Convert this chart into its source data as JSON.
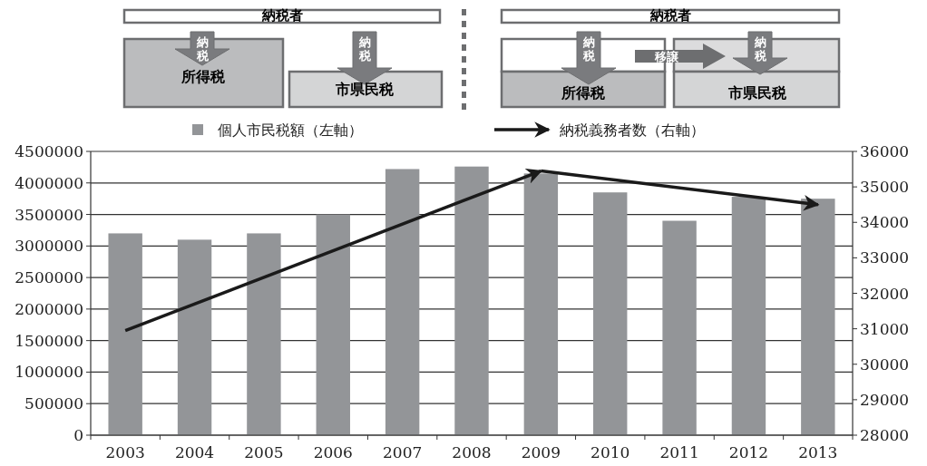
{
  "chart_data": {
    "type": "bar",
    "categories": [
      "2003",
      "2004",
      "2005",
      "2006",
      "2007",
      "2008",
      "2009",
      "2010",
      "2011",
      "2012",
      "2013"
    ],
    "series": [
      {
        "name": "個人市民税額（左軸）",
        "color": "#939598",
        "values": [
          3200000,
          3100000,
          3200000,
          3500000,
          4220000,
          4260000,
          4150000,
          3850000,
          3400000,
          3780000,
          3750000
        ]
      },
      {
        "name": "納税義務者数（右軸）",
        "type": "line",
        "axis": "y2",
        "color": "#1a1a1a",
        "values": [
          30950,
          null,
          null,
          null,
          null,
          null,
          35450,
          null,
          null,
          null,
          34500
        ]
      }
    ],
    "ylim": [
      0,
      4500000
    ],
    "yticks": [
      0,
      500000,
      1000000,
      1500000,
      2000000,
      2500000,
      3000000,
      3500000,
      4000000,
      4500000
    ],
    "y2lim": [
      28000,
      36000
    ],
    "y2ticks": [
      28000,
      29000,
      30000,
      31000,
      32000,
      33000,
      34000,
      35000,
      36000
    ],
    "grid": "y",
    "legend": "top",
    "marker": "none",
    "line_style": "solid",
    "annotations": [
      "納税者",
      "納税",
      "所得税",
      "納税",
      "市県民税",
      "納税者",
      "納税",
      "移譲",
      "納税",
      "所得税",
      "市県民税"
    ]
  }
}
